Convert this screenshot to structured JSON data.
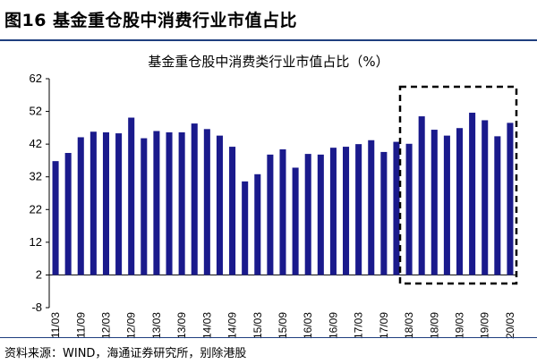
{
  "figure": {
    "label": "图16 基金重仓股中消费行业市值占比",
    "source": "资料来源：WIND，海通证券研究所，别除港股"
  },
  "chart_data": {
    "type": "bar",
    "title": "基金重仓股中消费类行业市值占比（%）",
    "xlabel": "",
    "ylabel": "",
    "ylim": [
      -8,
      62
    ],
    "yticks": [
      -8,
      2,
      12,
      22,
      32,
      42,
      52,
      62
    ],
    "bar_color": "#1a1a8c",
    "highlight": {
      "from": "18/03",
      "to": "20/03",
      "style": "dashed-box"
    },
    "categories": [
      "11/03",
      "11/06",
      "11/09",
      "11/12",
      "12/03",
      "12/06",
      "12/09",
      "12/12",
      "13/03",
      "13/06",
      "13/09",
      "13/12",
      "14/03",
      "14/06",
      "14/09",
      "14/12",
      "15/03",
      "15/06",
      "15/09",
      "15/12",
      "16/03",
      "16/06",
      "16/09",
      "16/12",
      "17/03",
      "17/06",
      "17/09",
      "17/12",
      "18/03",
      "18/06",
      "18/09",
      "18/12",
      "19/03",
      "19/06",
      "19/09",
      "19/12",
      "20/03"
    ],
    "tick_labels": [
      "11/03",
      "11/09",
      "12/03",
      "12/09",
      "13/03",
      "13/09",
      "14/03",
      "14/09",
      "15/03",
      "15/09",
      "16/03",
      "16/09",
      "17/03",
      "17/09",
      "18/03",
      "18/09",
      "19/03",
      "19/09",
      "20/03"
    ],
    "values": [
      36.8,
      39.3,
      44.1,
      45.8,
      45.6,
      45.3,
      50.1,
      43.8,
      46.0,
      45.6,
      45.6,
      48.3,
      46.6,
      44.6,
      41.2,
      30.6,
      32.8,
      38.8,
      40.4,
      34.8,
      39.0,
      38.8,
      40.9,
      41.2,
      42.0,
      43.2,
      39.6,
      42.7,
      42.1,
      50.5,
      46.4,
      44.6,
      46.9,
      51.6,
      49.3,
      44.4,
      48.5
    ]
  }
}
